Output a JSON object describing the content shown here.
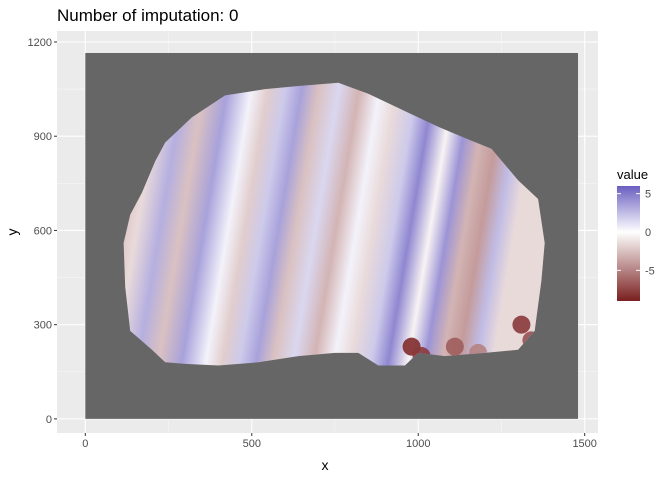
{
  "chart_data": {
    "type": "heatmap",
    "title": "Number of imputation: 0",
    "xlabel": "x",
    "ylabel": "y",
    "xlim": [
      -85,
      1540
    ],
    "ylim": [
      -45,
      1235
    ],
    "x_ticks": [
      0,
      500,
      1000,
      1500
    ],
    "y_ticks": [
      0,
      300,
      600,
      900,
      1200
    ],
    "grid": true,
    "panel_background": "#ebebeb",
    "na_fill": "#666666",
    "na_region": {
      "x": [
        0,
        1480
      ],
      "y": [
        0,
        1165
      ]
    },
    "colors": {
      "low": "#7a1f1f",
      "mid": "#ffffff",
      "high": "#6a5fc1"
    },
    "legend": {
      "title": "value",
      "position": "right",
      "range": [
        -9,
        6
      ],
      "breaks": [
        5,
        0,
        -5
      ],
      "break_labels": [
        "5",
        "0",
        "-5"
      ]
    },
    "region_outline": [
      [
        135,
        280
      ],
      [
        120,
        420
      ],
      [
        115,
        560
      ],
      [
        135,
        650
      ],
      [
        170,
        720
      ],
      [
        210,
        820
      ],
      [
        240,
        880
      ],
      [
        320,
        960
      ],
      [
        420,
        1030
      ],
      [
        540,
        1050
      ],
      [
        640,
        1060
      ],
      [
        760,
        1070
      ],
      [
        850,
        1035
      ],
      [
        960,
        980
      ],
      [
        1060,
        930
      ],
      [
        1150,
        890
      ],
      [
        1220,
        860
      ],
      [
        1300,
        760
      ],
      [
        1360,
        700
      ],
      [
        1380,
        560
      ],
      [
        1370,
        440
      ],
      [
        1350,
        280
      ],
      [
        1300,
        220
      ],
      [
        1200,
        210
      ],
      [
        1080,
        200
      ],
      [
        1000,
        210
      ],
      [
        960,
        170
      ],
      [
        880,
        170
      ],
      [
        820,
        210
      ],
      [
        750,
        210
      ],
      [
        640,
        200
      ],
      [
        520,
        180
      ],
      [
        400,
        170
      ],
      [
        300,
        175
      ],
      [
        240,
        180
      ],
      [
        200,
        220
      ]
    ],
    "bands": [
      {
        "x": 150,
        "value": -3.0
      },
      {
        "x": 230,
        "value": -1.5
      },
      {
        "x": 300,
        "value": 3.0
      },
      {
        "x": 360,
        "value": -2.5
      },
      {
        "x": 430,
        "value": 3.5
      },
      {
        "x": 500,
        "value": 0.5
      },
      {
        "x": 550,
        "value": -2.0
      },
      {
        "x": 600,
        "value": 2.0
      },
      {
        "x": 650,
        "value": 3.5
      },
      {
        "x": 700,
        "value": -2.5
      },
      {
        "x": 760,
        "value": 1.5
      },
      {
        "x": 820,
        "value": -3.0
      },
      {
        "x": 880,
        "value": 0.5
      },
      {
        "x": 930,
        "value": -1.5
      },
      {
        "x": 990,
        "value": 2.0
      },
      {
        "x": 1040,
        "value": 4.5
      },
      {
        "x": 1100,
        "value": -0.5
      },
      {
        "x": 1150,
        "value": 4.0
      },
      {
        "x": 1200,
        "value": -3.0
      },
      {
        "x": 1250,
        "value": -4.0
      },
      {
        "x": 1300,
        "value": 2.5
      },
      {
        "x": 1350,
        "value": -1.5
      }
    ],
    "hotspots": [
      {
        "x": 980,
        "y": 230,
        "value": -8.5
      },
      {
        "x": 1010,
        "y": 200,
        "value": -8.0
      },
      {
        "x": 1110,
        "y": 230,
        "value": -6.5
      },
      {
        "x": 1310,
        "y": 300,
        "value": -8.0
      },
      {
        "x": 1340,
        "y": 250,
        "value": -7.0
      },
      {
        "x": 1180,
        "y": 210,
        "value": -5.0
      }
    ]
  }
}
